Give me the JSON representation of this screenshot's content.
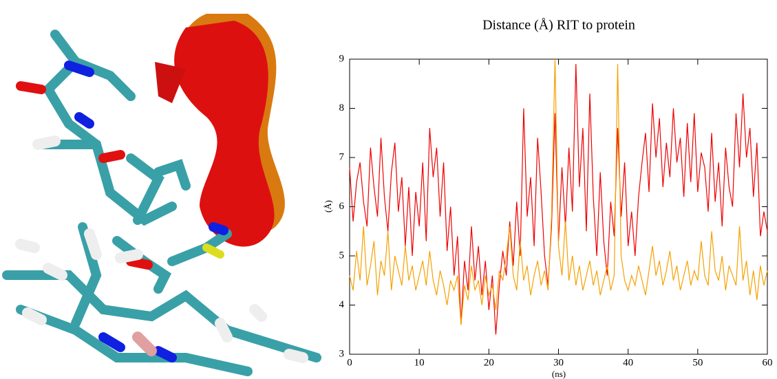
{
  "chart_data": {
    "type": "line",
    "title": "Distance (Å) RIT to protein",
    "xlabel": "(ns)",
    "ylabel": "(Å)",
    "x": [
      0,
      0.5,
      1,
      1.5,
      2,
      2.5,
      3,
      3.5,
      4,
      4.5,
      5,
      5.5,
      6,
      6.5,
      7,
      7.5,
      8,
      8.5,
      9,
      9.5,
      10,
      10.5,
      11,
      11.5,
      12,
      12.5,
      13,
      13.5,
      14,
      14.5,
      15,
      15.5,
      16,
      16.5,
      17,
      17.5,
      18,
      18.5,
      19,
      19.5,
      20,
      20.5,
      21,
      21.5,
      22,
      22.5,
      23,
      23.5,
      24,
      24.5,
      25,
      25.5,
      26,
      26.5,
      27,
      27.5,
      28,
      28.5,
      29,
      29.5,
      30,
      30.5,
      31,
      31.5,
      32,
      32.5,
      33,
      33.5,
      34,
      34.5,
      35,
      35.5,
      36,
      36.5,
      37,
      37.5,
      38,
      38.5,
      39,
      39.5,
      40,
      40.5,
      41,
      41.5,
      42,
      42.5,
      43,
      43.5,
      44,
      44.5,
      45,
      45.5,
      46,
      46.5,
      47,
      47.5,
      48,
      48.5,
      49,
      49.5,
      50,
      50.5,
      51,
      51.5,
      52,
      52.5,
      53,
      53.5,
      54,
      54.5,
      55,
      55.5,
      56,
      56.5,
      57,
      57.5,
      58,
      58.5,
      59,
      59.5,
      60
    ],
    "series": [
      {
        "color": "#ee0000",
        "values": [
          6.8,
          5.7,
          6.5,
          6.9,
          6.1,
          5.6,
          7.2,
          6.4,
          5.8,
          7.4,
          6.2,
          5.5,
          6.7,
          7.3,
          5.9,
          6.6,
          5.2,
          6.4,
          5.0,
          6.3,
          5.6,
          6.9,
          5.3,
          7.6,
          6.6,
          7.2,
          5.8,
          6.9,
          5.1,
          6.0,
          4.6,
          5.4,
          3.6,
          4.9,
          4.3,
          5.6,
          4.5,
          5.2,
          4.2,
          4.9,
          3.9,
          4.6,
          3.4,
          4.4,
          5.1,
          4.6,
          5.7,
          4.8,
          6.1,
          5.0,
          8.0,
          5.8,
          6.6,
          5.2,
          7.4,
          6.3,
          5.0,
          4.4,
          5.6,
          7.9,
          5.3,
          6.8,
          5.6,
          7.2,
          5.9,
          8.9,
          6.4,
          7.6,
          5.5,
          8.3,
          6.2,
          5.0,
          6.7,
          5.3,
          4.6,
          6.1,
          5.4,
          7.6,
          5.8,
          6.9,
          5.2,
          5.9,
          5.0,
          6.2,
          6.9,
          7.5,
          6.3,
          8.1,
          7.0,
          7.8,
          6.4,
          7.3,
          6.6,
          8.0,
          6.9,
          7.4,
          6.2,
          7.7,
          6.5,
          7.9,
          6.3,
          7.1,
          6.8,
          5.9,
          7.5,
          6.1,
          6.9,
          5.6,
          7.2,
          6.4,
          6.0,
          7.9,
          6.8,
          8.3,
          7.0,
          7.6,
          6.2,
          7.3,
          5.4,
          5.9,
          5.5
        ]
      },
      {
        "color": "#f5a000",
        "values": [
          4.6,
          4.3,
          5.1,
          4.5,
          5.6,
          4.4,
          4.8,
          5.3,
          4.2,
          4.9,
          4.6,
          5.5,
          4.3,
          5.0,
          4.7,
          4.4,
          5.2,
          4.5,
          4.8,
          4.3,
          4.6,
          4.9,
          4.4,
          5.1,
          4.5,
          4.2,
          4.7,
          4.4,
          4.0,
          4.5,
          4.3,
          4.6,
          3.6,
          4.4,
          4.1,
          4.8,
          4.3,
          4.5,
          4.0,
          4.6,
          4.2,
          4.4,
          3.9,
          4.7,
          4.5,
          5.0,
          5.6,
          4.6,
          4.3,
          5.3,
          4.5,
          4.8,
          4.2,
          4.6,
          4.9,
          4.4,
          4.7,
          4.3,
          5.8,
          9.0,
          5.2,
          4.6,
          5.7,
          4.5,
          5.0,
          4.4,
          4.8,
          4.3,
          4.6,
          4.9,
          4.4,
          4.7,
          4.2,
          4.5,
          4.8,
          4.3,
          4.6,
          8.9,
          5.0,
          4.5,
          4.3,
          4.6,
          4.4,
          4.8,
          4.5,
          4.2,
          4.7,
          5.2,
          4.6,
          4.9,
          4.4,
          4.7,
          5.1,
          4.5,
          4.8,
          4.3,
          4.6,
          4.9,
          4.4,
          4.7,
          4.5,
          5.3,
          4.6,
          4.4,
          5.5,
          4.7,
          4.5,
          5.0,
          4.3,
          4.8,
          4.6,
          4.4,
          5.6,
          4.5,
          4.9,
          4.2,
          4.7,
          4.1,
          4.8,
          4.4,
          4.7
        ]
      }
    ],
    "xlim": [
      0,
      60
    ],
    "xticks": [
      0,
      10,
      20,
      30,
      40,
      50,
      60
    ],
    "ylim": [
      3,
      9
    ],
    "yticks": [
      3,
      4,
      5,
      6,
      7,
      8,
      9
    ]
  }
}
